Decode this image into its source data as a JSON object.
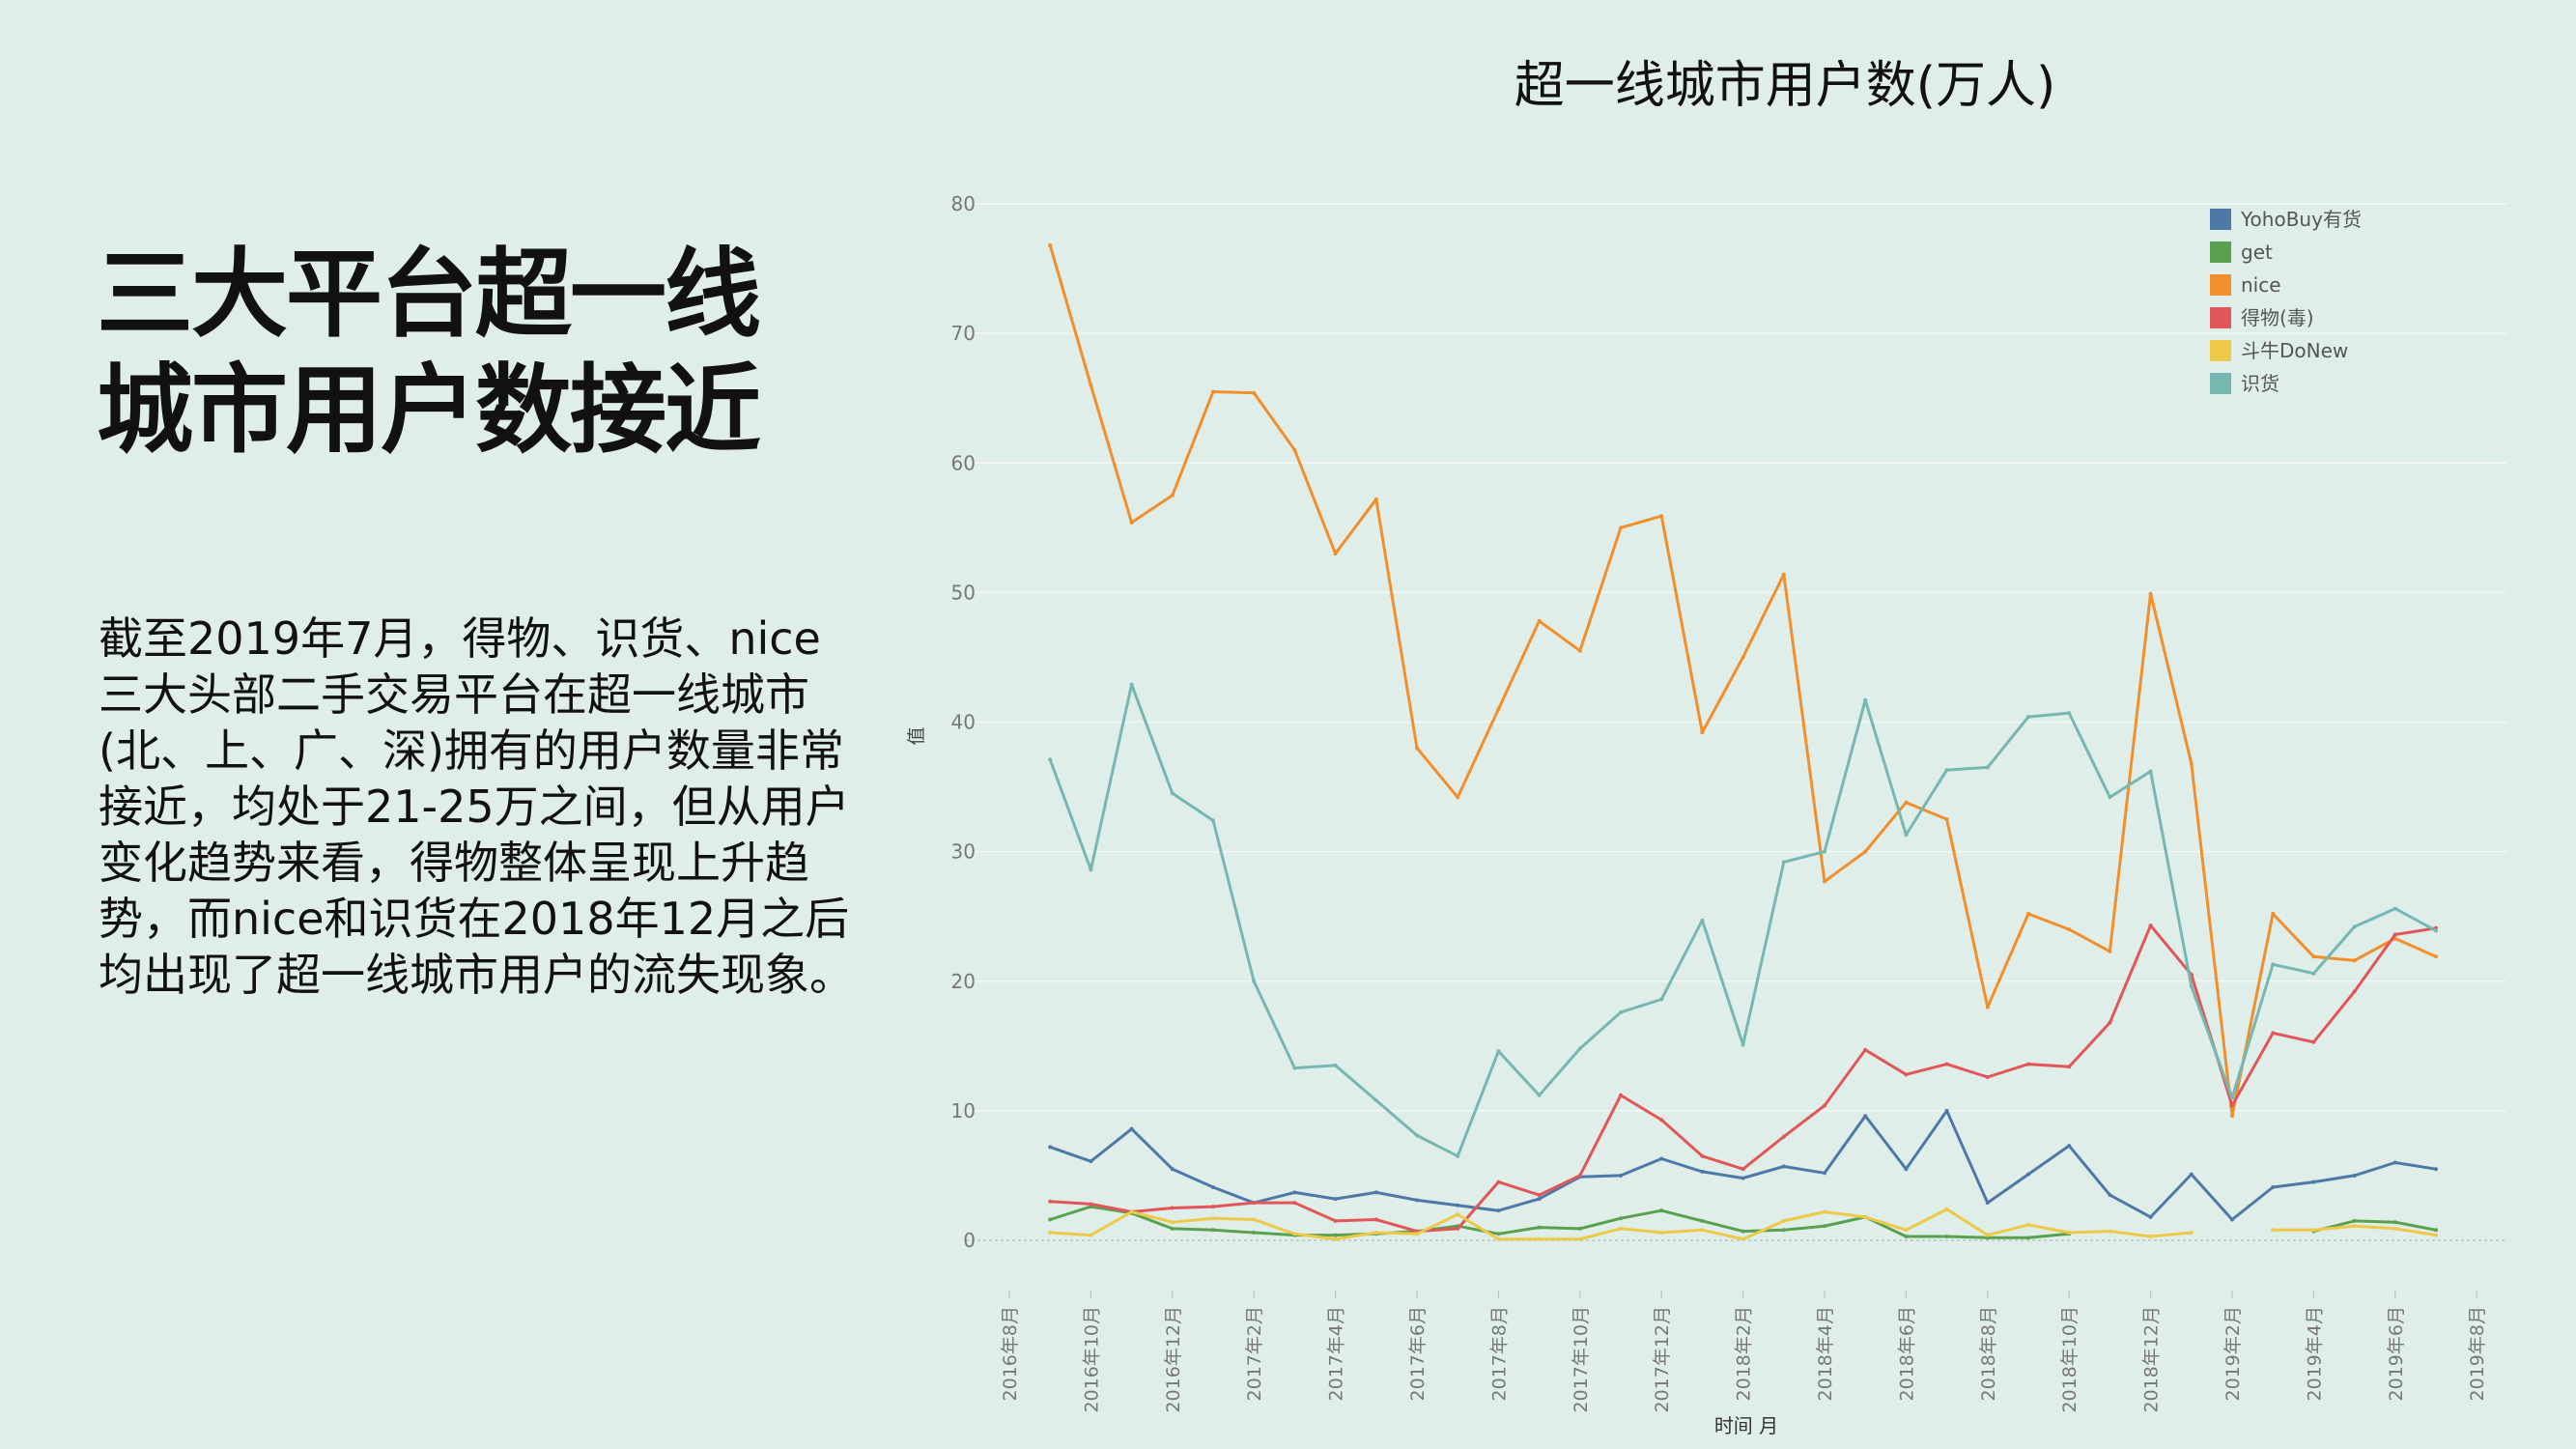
{
  "slide": {
    "headline_line1": "三大平台超一线",
    "headline_line2": "城市用户数接近",
    "body": "截至2019年7月，得物、识货、nice三大头部二手交易平台在超一线城市(北、上、广、深)拥有的用户数量非常接近，均处于21-25万之间，但从用户变化趋势来看，得物整体呈现上升趋势，而nice和识货在2018年12月之后均出现了超一线城市用户的流失现象。"
  },
  "chart_data": {
    "type": "line",
    "title": "超一线城市用户数(万人)",
    "xlabel": "时间 月",
    "ylabel": "值",
    "ylim": [
      0,
      80
    ],
    "yticks": [
      0,
      10,
      20,
      30,
      40,
      50,
      60,
      70,
      80
    ],
    "x_ticks": [
      "2016年8月",
      "2016年10月",
      "2016年12月",
      "2017年2月",
      "2017年4月",
      "2017年6月",
      "2017年8月",
      "2017年10月",
      "2017年12月",
      "2018年2月",
      "2018年4月",
      "2018年6月",
      "2018年8月",
      "2018年10月",
      "2018年12月",
      "2019年2月",
      "2019年4月",
      "2019年6月",
      "2019年8月"
    ],
    "x": [
      "2016年9月",
      "2016年10月",
      "2016年11月",
      "2016年12月",
      "2017年1月",
      "2017年2月",
      "2017年3月",
      "2017年4月",
      "2017年5月",
      "2017年6月",
      "2017年7月",
      "2017年8月",
      "2017年9月",
      "2017年10月",
      "2017年11月",
      "2017年12月",
      "2018年1月",
      "2018年2月",
      "2018年3月",
      "2018年4月",
      "2018年5月",
      "2018年6月",
      "2018年7月",
      "2018年8月",
      "2018年9月",
      "2018年10月",
      "2018年11月",
      "2018年12月",
      "2019年1月",
      "2019年2月",
      "2019年3月",
      "2019年4月",
      "2019年5月",
      "2019年6月",
      "2019年7月"
    ],
    "legend_position": "top-right",
    "series": [
      {
        "name": "YohoBuy有货",
        "color": "#4e79a7",
        "values": [
          7.2,
          6.1,
          8.6,
          5.5,
          4.1,
          2.9,
          3.7,
          3.2,
          3.7,
          3.1,
          2.7,
          2.3,
          3.2,
          4.9,
          5.0,
          6.3,
          5.3,
          4.8,
          5.7,
          5.2,
          9.6,
          5.5,
          10.0,
          2.9,
          5.1,
          7.3,
          3.5,
          1.8,
          5.1,
          1.6,
          4.1,
          4.5,
          5.0,
          6.0,
          5.5
        ]
      },
      {
        "name": "get",
        "color": "#59a14f",
        "values": [
          1.6,
          2.6,
          2.1,
          0.9,
          0.8,
          0.6,
          0.4,
          0.4,
          0.5,
          0.7,
          1.1,
          0.5,
          1.0,
          0.9,
          1.7,
          2.3,
          1.5,
          0.7,
          0.8,
          1.1,
          1.8,
          0.3,
          0.3,
          0.2,
          0.2,
          0.5,
          null,
          null,
          null,
          null,
          null,
          0.7,
          1.5,
          1.4,
          0.8
        ]
      },
      {
        "name": "nice",
        "color": "#f28e2b",
        "values": [
          76.8,
          66.0,
          55.4,
          57.5,
          65.5,
          65.4,
          61.0,
          53.0,
          57.2,
          38.0,
          34.2,
          41.0,
          47.8,
          45.5,
          55.0,
          55.9,
          39.2,
          45.0,
          51.4,
          27.7,
          30.0,
          33.8,
          32.5,
          18.0,
          25.2,
          24.0,
          22.3,
          49.9,
          36.8,
          9.6,
          25.2,
          21.9,
          21.6,
          23.3,
          21.9
        ]
      },
      {
        "name": "得物(毒)",
        "color": "#e15759",
        "values": [
          3.0,
          2.8,
          2.2,
          2.5,
          2.6,
          2.9,
          2.9,
          1.5,
          1.6,
          0.7,
          0.9,
          4.5,
          3.5,
          5.0,
          11.2,
          9.3,
          6.5,
          5.5,
          8.0,
          10.4,
          14.7,
          12.8,
          13.6,
          12.6,
          13.6,
          13.4,
          16.8,
          24.3,
          20.5,
          10.4,
          16.0,
          15.3,
          19.2,
          23.6,
          24.1
        ]
      },
      {
        "name": "斗牛DoNew",
        "color": "#edc948",
        "values": [
          0.6,
          0.4,
          2.2,
          1.4,
          1.7,
          1.6,
          0.5,
          0.1,
          0.6,
          0.5,
          2.0,
          0.1,
          0.1,
          0.1,
          0.9,
          0.6,
          0.8,
          0.1,
          1.5,
          2.2,
          1.8,
          0.8,
          2.4,
          0.4,
          1.2,
          0.6,
          0.7,
          0.3,
          0.6,
          null,
          0.8,
          0.8,
          1.1,
          0.9,
          0.4
        ]
      },
      {
        "name": "识货",
        "color": "#76b7b2",
        "values": [
          37.1,
          28.6,
          42.9,
          34.5,
          32.4,
          20.0,
          13.3,
          13.5,
          10.8,
          8.1,
          6.5,
          14.6,
          11.2,
          14.8,
          17.6,
          18.6,
          24.7,
          15.1,
          29.2,
          30.0,
          41.7,
          31.3,
          36.3,
          36.5,
          40.4,
          40.7,
          34.2,
          36.2,
          19.6,
          11.0,
          21.3,
          20.6,
          24.2,
          25.6,
          23.9
        ]
      }
    ]
  }
}
